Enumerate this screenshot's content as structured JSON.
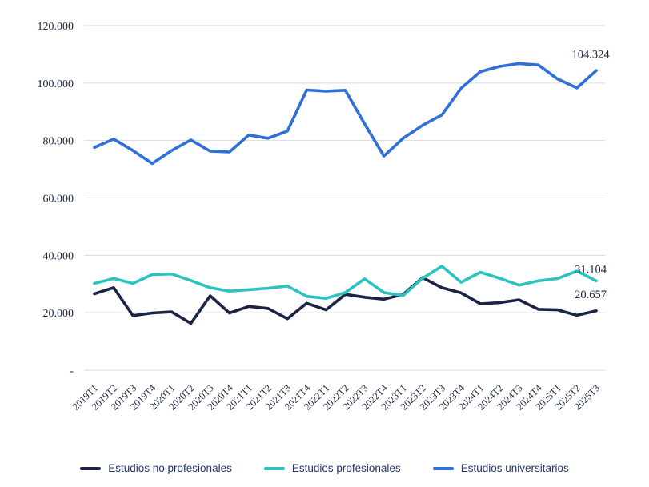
{
  "chart_data": {
    "type": "line",
    "title": "",
    "xlabel": "",
    "ylabel": "",
    "ylim": [
      0,
      120000
    ],
    "grid": "horizontal",
    "legend_position": "bottom",
    "y_ticks": [
      {
        "value": 0,
        "label": "-"
      },
      {
        "value": 20000,
        "label": "20.000"
      },
      {
        "value": 40000,
        "label": "40.000"
      },
      {
        "value": 60000,
        "label": "60.000"
      },
      {
        "value": 80000,
        "label": "80.000"
      },
      {
        "value": 100000,
        "label": "100.000"
      },
      {
        "value": 120000,
        "label": "120.000"
      }
    ],
    "categories": [
      "2019T1",
      "2019T2",
      "2019T3",
      "2019T4",
      "2020T1",
      "2020T2",
      "2020T3",
      "2020T4",
      "2021T1",
      "2021T2",
      "2021T3",
      "2021T4",
      "2022T1",
      "2022T2",
      "2022T3",
      "2022T4",
      "2023T1",
      "2023T2",
      "2023T3",
      "2023T4",
      "2024T1",
      "2024T2",
      "2024T3",
      "2024T4",
      "2025T1",
      "2025T2",
      "2025T3"
    ],
    "series": [
      {
        "name": "Estudios no profesionales",
        "color": "#1b2445",
        "end_label": "20.657",
        "values": [
          26600,
          28700,
          19000,
          19900,
          20300,
          16300,
          25900,
          19900,
          22200,
          21500,
          17900,
          23300,
          21000,
          26400,
          25400,
          24700,
          26400,
          32200,
          28700,
          26900,
          23100,
          23500,
          24500,
          21200,
          21000,
          19100,
          20657
        ]
      },
      {
        "name": "Estudios profesionales",
        "color": "#2bc2bf",
        "end_label": "31.104",
        "values": [
          30200,
          31900,
          30200,
          33300,
          33500,
          31200,
          28700,
          27500,
          28000,
          28500,
          29300,
          25700,
          25000,
          27000,
          31800,
          27000,
          26000,
          32000,
          36200,
          30600,
          34100,
          32000,
          29600,
          31100,
          31900,
          34500,
          31104
        ]
      },
      {
        "name": "Estudios universitarios",
        "color": "#2e6fd8",
        "end_label": "104.324",
        "values": [
          77600,
          80500,
          76500,
          72000,
          76500,
          80200,
          76300,
          76000,
          81900,
          80800,
          83300,
          97600,
          97200,
          97500,
          85800,
          74600,
          80800,
          85300,
          88900,
          98200,
          104000,
          105800,
          106800,
          106300,
          101400,
          98300,
          104324
        ]
      }
    ]
  }
}
